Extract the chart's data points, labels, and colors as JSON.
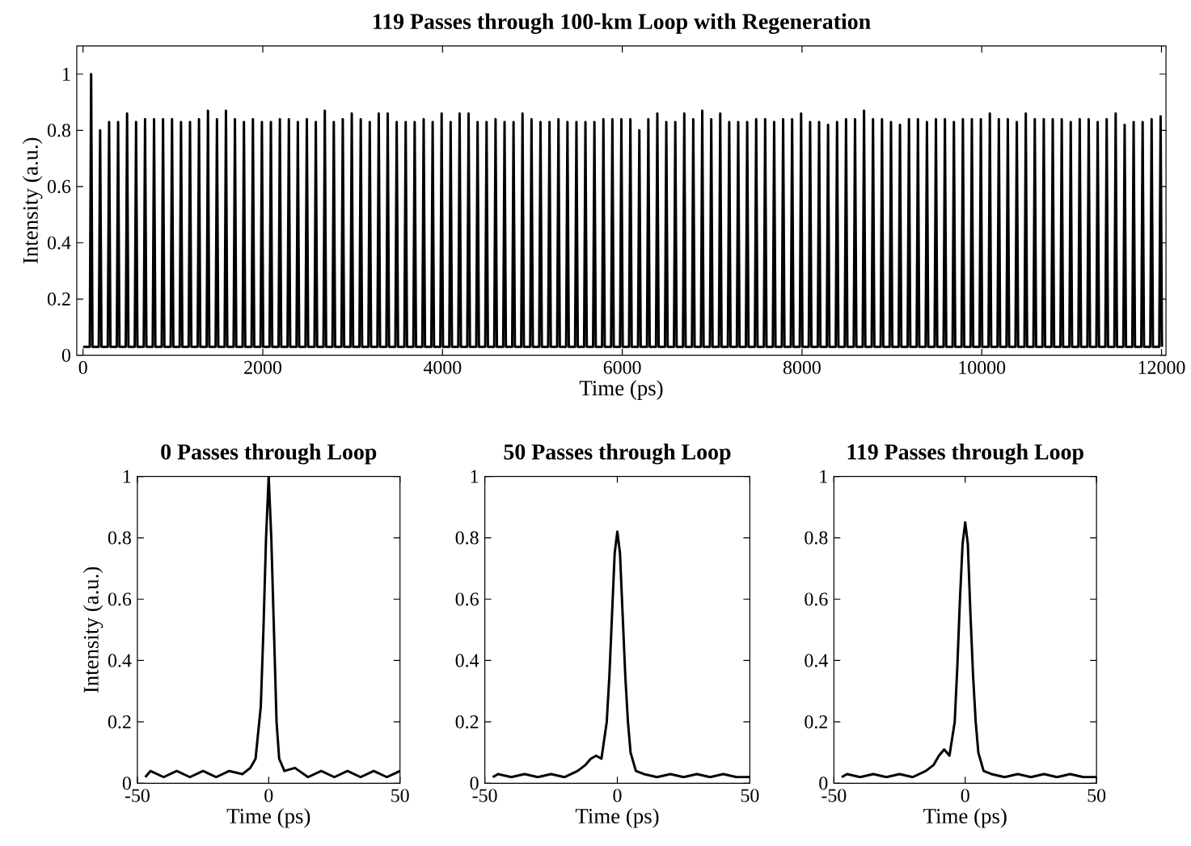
{
  "chart_data": [
    {
      "type": "line",
      "title": "119 Passes through 100-km Loop with Regeneration",
      "xlabel": "Time (ps)",
      "ylabel": "Intensity (a.u.)",
      "color": "#000000",
      "xlim": [
        -70,
        12050
      ],
      "ylim": [
        0,
        1.1
      ],
      "xticks": [
        0,
        2000,
        4000,
        6000,
        8000,
        10000,
        12000
      ],
      "yticks": [
        0,
        0.2,
        0.4,
        0.6,
        0.8,
        1
      ],
      "x": [
        0,
        75,
        90,
        105,
        175,
        190,
        205,
        275,
        290,
        305,
        375,
        390,
        405,
        475,
        490,
        505,
        575,
        590,
        605,
        675,
        690,
        705,
        775,
        790,
        805,
        875,
        890,
        905,
        975,
        990,
        1005,
        1075,
        1090,
        1105,
        1175,
        1190,
        1205,
        1275,
        1290,
        1305,
        1375,
        1390,
        1405,
        1475,
        1490,
        1505,
        1575,
        1590,
        1605,
        1675,
        1690,
        1705,
        1775,
        1790,
        1805,
        1875,
        1890,
        1905,
        1975,
        1990,
        2005,
        2075,
        2090,
        2105,
        2175,
        2190,
        2205,
        2275,
        2290,
        2305,
        2375,
        2390,
        2405,
        2475,
        2490,
        2505,
        2575,
        2590,
        2605,
        2675,
        2690,
        2705,
        2775,
        2790,
        2805,
        2875,
        2890,
        2905,
        2975,
        2990,
        3005,
        3075,
        3090,
        3105,
        3175,
        3190,
        3205,
        3275,
        3290,
        3305,
        3375,
        3390,
        3405,
        3475,
        3490,
        3505,
        3575,
        3590,
        3605,
        3675,
        3690,
        3705,
        3775,
        3790,
        3805,
        3875,
        3890,
        3905,
        3975,
        3990,
        4005,
        4075,
        4090,
        4105,
        4175,
        4190,
        4205,
        4275,
        4290,
        4305,
        4375,
        4390,
        4405,
        4475,
        4490,
        4505,
        4575,
        4590,
        4605,
        4675,
        4690,
        4705,
        4775,
        4790,
        4805,
        4875,
        4890,
        4905,
        4975,
        4990,
        5005,
        5075,
        5090,
        5105,
        5175,
        5190,
        5205,
        5275,
        5290,
        5305,
        5375,
        5390,
        5405,
        5475,
        5490,
        5505,
        5575,
        5590,
        5605,
        5675,
        5690,
        5705,
        5775,
        5790,
        5805,
        5875,
        5890,
        5905,
        5975,
        5990,
        6005,
        6075,
        6090,
        6105,
        6175,
        6190,
        6205,
        6275,
        6290,
        6305,
        6375,
        6390,
        6405,
        6475,
        6490,
        6505,
        6575,
        6590,
        6605,
        6675,
        6690,
        6705,
        6775,
        6790,
        6805,
        6875,
        6890,
        6905,
        6975,
        6990,
        7005,
        7075,
        7090,
        7105,
        7175,
        7190,
        7205,
        7275,
        7290,
        7305,
        7375,
        7390,
        7405,
        7475,
        7490,
        7505,
        7575,
        7590,
        7605,
        7675,
        7690,
        7705,
        7775,
        7790,
        7805,
        7875,
        7890,
        7905,
        7975,
        7990,
        8005,
        8075,
        8090,
        8105,
        8175,
        8190,
        8205,
        8275,
        8290,
        8305,
        8375,
        8390,
        8405,
        8475,
        8490,
        8505,
        8575,
        8590,
        8605,
        8675,
        8690,
        8705,
        8775,
        8790,
        8805,
        8875,
        8890,
        8905,
        8975,
        8990,
        9005,
        9075,
        9090,
        9105,
        9175,
        9190,
        9205,
        9275,
        9290,
        9305,
        9375,
        9390,
        9405,
        9475,
        9490,
        9505,
        9575,
        9590,
        9605,
        9675,
        9690,
        9705,
        9775,
        9790,
        9805,
        9875,
        9890,
        9905,
        9975,
        9990,
        10005,
        10075,
        10090,
        10105,
        10175,
        10190,
        10205,
        10275,
        10290,
        10305,
        10375,
        10390,
        10405,
        10475,
        10490,
        10505,
        10575,
        10590,
        10605,
        10675,
        10690,
        10705,
        10775,
        10790,
        10805,
        10875,
        10890,
        10905,
        10975,
        10990,
        11005,
        11075,
        11090,
        11105,
        11175,
        11190,
        11205,
        11275,
        11290,
        11305,
        11375,
        11390,
        11405,
        11475,
        11490,
        11505,
        11575,
        11590,
        11605,
        11675,
        11690,
        11705,
        11775,
        11790,
        11805,
        11875,
        11890,
        11905,
        11975,
        11990,
        12005
      ],
      "values": [
        0.03,
        0.03,
        1.0,
        0.03,
        0.03,
        0.8,
        0.03,
        0.03,
        0.83,
        0.03,
        0.03,
        0.83,
        0.03,
        0.03,
        0.86,
        0.03,
        0.03,
        0.83,
        0.03,
        0.03,
        0.84,
        0.03,
        0.03,
        0.84,
        0.03,
        0.03,
        0.84,
        0.03,
        0.03,
        0.84,
        0.03,
        0.03,
        0.83,
        0.03,
        0.03,
        0.83,
        0.03,
        0.03,
        0.84,
        0.03,
        0.03,
        0.87,
        0.03,
        0.03,
        0.84,
        0.03,
        0.03,
        0.87,
        0.03,
        0.03,
        0.84,
        0.03,
        0.03,
        0.83,
        0.03,
        0.03,
        0.84,
        0.03,
        0.03,
        0.83,
        0.03,
        0.03,
        0.83,
        0.03,
        0.03,
        0.84,
        0.03,
        0.03,
        0.84,
        0.03,
        0.03,
        0.83,
        0.03,
        0.03,
        0.84,
        0.03,
        0.03,
        0.83,
        0.03,
        0.03,
        0.87,
        0.03,
        0.03,
        0.83,
        0.03,
        0.03,
        0.84,
        0.03,
        0.03,
        0.86,
        0.03,
        0.03,
        0.84,
        0.03,
        0.03,
        0.83,
        0.03,
        0.03,
        0.86,
        0.03,
        0.03,
        0.86,
        0.03,
        0.03,
        0.83,
        0.03,
        0.03,
        0.83,
        0.03,
        0.03,
        0.83,
        0.03,
        0.03,
        0.84,
        0.03,
        0.03,
        0.83,
        0.03,
        0.03,
        0.86,
        0.03,
        0.03,
        0.83,
        0.03,
        0.03,
        0.86,
        0.03,
        0.03,
        0.86,
        0.03,
        0.03,
        0.83,
        0.03,
        0.03,
        0.83,
        0.03,
        0.03,
        0.84,
        0.03,
        0.03,
        0.83,
        0.03,
        0.03,
        0.83,
        0.03,
        0.03,
        0.86,
        0.03,
        0.03,
        0.84,
        0.03,
        0.03,
        0.83,
        0.03,
        0.03,
        0.83,
        0.03,
        0.03,
        0.84,
        0.03,
        0.03,
        0.83,
        0.03,
        0.03,
        0.83,
        0.03,
        0.03,
        0.83,
        0.03,
        0.03,
        0.83,
        0.03,
        0.03,
        0.84,
        0.03,
        0.03,
        0.84,
        0.03,
        0.03,
        0.84,
        0.03,
        0.03,
        0.84,
        0.03,
        0.03,
        0.8,
        0.03,
        0.03,
        0.84,
        0.03,
        0.03,
        0.86,
        0.03,
        0.03,
        0.83,
        0.03,
        0.03,
        0.83,
        0.03,
        0.03,
        0.86,
        0.03,
        0.03,
        0.84,
        0.03,
        0.03,
        0.87,
        0.03,
        0.03,
        0.84,
        0.03,
        0.03,
        0.86,
        0.03,
        0.03,
        0.83,
        0.03,
        0.03,
        0.83,
        0.03,
        0.03,
        0.83,
        0.03,
        0.03,
        0.84,
        0.03,
        0.03,
        0.84,
        0.03,
        0.03,
        0.83,
        0.03,
        0.03,
        0.84,
        0.03,
        0.03,
        0.84,
        0.03,
        0.03,
        0.86,
        0.03,
        0.03,
        0.83,
        0.03,
        0.03,
        0.83,
        0.03,
        0.03,
        0.82,
        0.03,
        0.03,
        0.83,
        0.03,
        0.03,
        0.84,
        0.03,
        0.03,
        0.84,
        0.03,
        0.03,
        0.87,
        0.03,
        0.03,
        0.84,
        0.03,
        0.03,
        0.84,
        0.03,
        0.03,
        0.83,
        0.03,
        0.03,
        0.82,
        0.03,
        0.03,
        0.84,
        0.03,
        0.03,
        0.84,
        0.03,
        0.03,
        0.83,
        0.03,
        0.03,
        0.84,
        0.03,
        0.03,
        0.84,
        0.03,
        0.03,
        0.83,
        0.03,
        0.03,
        0.84,
        0.03,
        0.03,
        0.84,
        0.03,
        0.03,
        0.84,
        0.03,
        0.03,
        0.86,
        0.03,
        0.03,
        0.84,
        0.03,
        0.03,
        0.84,
        0.03,
        0.03,
        0.83,
        0.03,
        0.03,
        0.86,
        0.03,
        0.03,
        0.84,
        0.03,
        0.03,
        0.84,
        0.03,
        0.03,
        0.84,
        0.03,
        0.03,
        0.84,
        0.03,
        0.03,
        0.83,
        0.03,
        0.03,
        0.84,
        0.03,
        0.03,
        0.84,
        0.03,
        0.03,
        0.83,
        0.03,
        0.03,
        0.84,
        0.03,
        0.03,
        0.86,
        0.03,
        0.03,
        0.82,
        0.03,
        0.03,
        0.83,
        0.03,
        0.03,
        0.83,
        0.03,
        0.03,
        0.84,
        0.03,
        0.03,
        0.85,
        0.03
      ]
    },
    {
      "type": "line",
      "title": "0 Passes through Loop",
      "xlabel": "Time (ps)",
      "ylabel": "Intensity (a.u.)",
      "color": "#000000",
      "xlim": [
        -50,
        50
      ],
      "ylim": [
        0,
        1
      ],
      "xticks": [
        -50,
        0,
        50
      ],
      "yticks": [
        0,
        0.2,
        0.4,
        0.6,
        0.8,
        1
      ],
      "x": [
        -47,
        -45,
        -40,
        -35,
        -30,
        -25,
        -20,
        -15,
        -10,
        -7,
        -5,
        -3,
        -2,
        -1,
        0,
        1,
        2,
        3,
        4,
        6,
        10,
        15,
        20,
        25,
        30,
        35,
        40,
        45,
        50
      ],
      "values": [
        0.02,
        0.04,
        0.02,
        0.04,
        0.02,
        0.04,
        0.02,
        0.04,
        0.03,
        0.05,
        0.08,
        0.25,
        0.5,
        0.8,
        1.0,
        0.8,
        0.5,
        0.2,
        0.08,
        0.04,
        0.05,
        0.02,
        0.04,
        0.02,
        0.04,
        0.02,
        0.04,
        0.02,
        0.04
      ]
    },
    {
      "type": "line",
      "title": "50 Passes through Loop",
      "xlabel": "Time (ps)",
      "color": "#000000",
      "xlim": [
        -50,
        50
      ],
      "ylim": [
        0,
        1
      ],
      "xticks": [
        -50,
        0,
        50
      ],
      "yticks": [
        0,
        0.2,
        0.4,
        0.6,
        0.8,
        1
      ],
      "x": [
        -47,
        -45,
        -40,
        -35,
        -30,
        -25,
        -20,
        -15,
        -12,
        -10,
        -8,
        -6,
        -4,
        -3,
        -2,
        -1,
        0,
        1,
        2,
        3,
        4,
        5,
        7,
        10,
        15,
        20,
        25,
        30,
        35,
        40,
        45,
        50
      ],
      "values": [
        0.02,
        0.03,
        0.02,
        0.03,
        0.02,
        0.03,
        0.02,
        0.04,
        0.06,
        0.08,
        0.09,
        0.08,
        0.2,
        0.35,
        0.55,
        0.75,
        0.82,
        0.75,
        0.55,
        0.35,
        0.2,
        0.1,
        0.04,
        0.03,
        0.02,
        0.03,
        0.02,
        0.03,
        0.02,
        0.03,
        0.02,
        0.02
      ]
    },
    {
      "type": "line",
      "title": "119 Passes through Loop",
      "xlabel": "Time (ps)",
      "color": "#000000",
      "xlim": [
        -50,
        50
      ],
      "ylim": [
        0,
        1
      ],
      "xticks": [
        -50,
        0,
        50
      ],
      "yticks": [
        0,
        0.2,
        0.4,
        0.6,
        0.8,
        1
      ],
      "x": [
        -47,
        -45,
        -40,
        -35,
        -30,
        -25,
        -20,
        -15,
        -12,
        -10,
        -8,
        -6,
        -4,
        -3,
        -2,
        -1,
        0,
        1,
        2,
        3,
        4,
        5,
        7,
        10,
        15,
        20,
        25,
        30,
        35,
        40,
        45,
        50
      ],
      "values": [
        0.02,
        0.03,
        0.02,
        0.03,
        0.02,
        0.03,
        0.02,
        0.04,
        0.06,
        0.09,
        0.11,
        0.09,
        0.2,
        0.38,
        0.6,
        0.78,
        0.85,
        0.78,
        0.55,
        0.35,
        0.2,
        0.1,
        0.04,
        0.03,
        0.02,
        0.03,
        0.02,
        0.03,
        0.02,
        0.03,
        0.02,
        0.02
      ]
    }
  ]
}
